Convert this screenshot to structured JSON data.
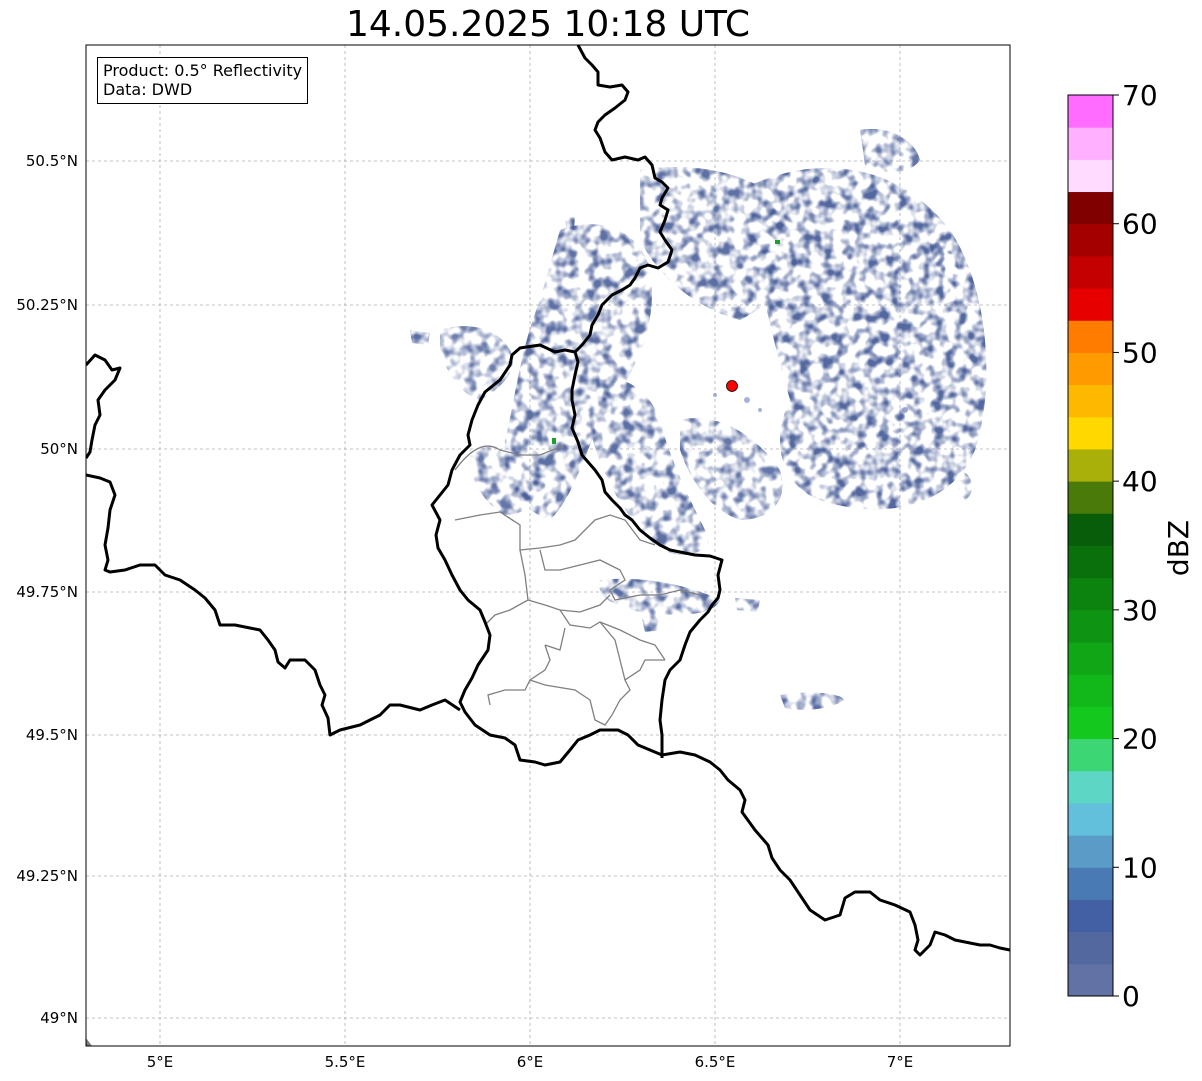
{
  "title": "14.05.2025 10:18 UTC",
  "info": {
    "product": "Product: 0.5° Reflectivity",
    "data": "Data: DWD"
  },
  "axes": {
    "x_ticks": [
      "5°E",
      "5.5°E",
      "6°E",
      "6.5°E",
      "7°E"
    ],
    "y_ticks": [
      "50.5°N",
      "50.25°N",
      "50°N",
      "49.75°N",
      "49.5°N",
      "49.25°N",
      "49°N"
    ],
    "lon_range": [
      4.8,
      7.3
    ],
    "lat_range": [
      48.95,
      50.7
    ]
  },
  "radar": {
    "site_marker_color": "#ff0000",
    "echo_color": "#4a5f9a"
  },
  "colorbar": {
    "label": "dBZ",
    "ticks": [
      "0",
      "10",
      "20",
      "30",
      "40",
      "50",
      "60",
      "70"
    ],
    "range": [
      0,
      70
    ],
    "step": 2.5,
    "colors": [
      "#6272a4",
      "#5468a0",
      "#4460a5",
      "#4a7ab4",
      "#5a9bc8",
      "#63c0dc",
      "#5dd6c6",
      "#3dd675",
      "#14c81e",
      "#12b81a",
      "#10a616",
      "#0e9412",
      "#0c820f",
      "#0a700c",
      "#075d09",
      "#4a7a0a",
      "#aab00a",
      "#ffd800",
      "#ffb800",
      "#ff9a00",
      "#ff7c00",
      "#e60000",
      "#c40000",
      "#a40000",
      "#800000",
      "#ffdcff",
      "#ffb0ff",
      "#ff6cff",
      "#e838e8"
    ]
  }
}
